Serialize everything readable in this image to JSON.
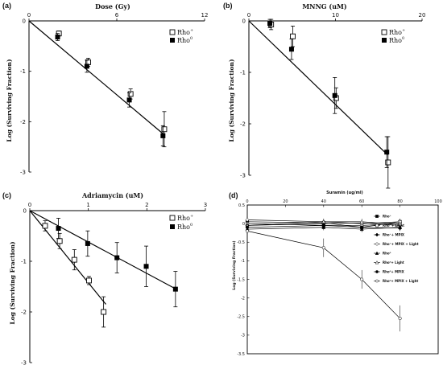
{
  "chart_data": [
    {
      "panel": "(a)",
      "type": "line",
      "title": "Dose (Gy)",
      "xlabel": "Dose (Gy)",
      "ylabel": "Log (Surviving Fraction)",
      "xlim": [
        0,
        12
      ],
      "ylim": [
        -3,
        0
      ],
      "xticks": [
        "0",
        "6",
        "12"
      ],
      "yticks": [
        "0",
        "-1",
        "-2",
        "-3"
      ],
      "legend_position": "top-right",
      "series": [
        {
          "name": "Rho+",
          "marker": "open-square",
          "x": [
            2,
            4,
            6.9,
            9.2
          ],
          "y": [
            -0.25,
            -0.82,
            -1.45,
            -2.15
          ],
          "err": [
            0.05,
            0.08,
            0.1,
            0.35
          ]
        },
        {
          "name": "Rho0",
          "marker": "filled-square",
          "x": [
            2,
            4,
            6.9,
            9.2
          ],
          "y": [
            -0.32,
            -0.9,
            -1.57,
            -2.28
          ],
          "err": [
            0.07,
            0.12,
            0.14,
            0.2
          ]
        }
      ],
      "fit_lines": [
        [
          [
            0,
            0
          ],
          [
            9.2,
            -2.25
          ]
        ]
      ]
    },
    {
      "panel": "(b)",
      "type": "line",
      "title": "MNNG (uM)",
      "xlabel": "MNNG (uM)",
      "ylabel": "Log (Surviving Fraction)",
      "xlim": [
        0,
        20
      ],
      "ylim": [
        -3,
        0
      ],
      "xticks": [
        "0",
        "10",
        "20"
      ],
      "yticks": [
        "0",
        "-1",
        "-2",
        "-3"
      ],
      "legend_position": "top-right",
      "series": [
        {
          "name": "Rho+",
          "marker": "open-square",
          "x": [
            2.5,
            5,
            10,
            16
          ],
          "y": [
            -0.07,
            -0.3,
            -1.5,
            -2.75
          ],
          "err": [
            0.1,
            0.2,
            0.2,
            0.5
          ]
        },
        {
          "name": "Rho0",
          "marker": "filled-square",
          "x": [
            2.5,
            5,
            10,
            16
          ],
          "y": [
            -0.05,
            -0.55,
            -1.45,
            -2.55
          ],
          "err": [
            0.08,
            0.2,
            0.35,
            0.3
          ]
        }
      ],
      "fit_lines": [
        [
          [
            0,
            0
          ],
          [
            16,
            -2.6
          ]
        ]
      ]
    },
    {
      "panel": "(c)",
      "type": "line",
      "title": "Adriamycin (uM)",
      "xlabel": "Adriamycin (uM)",
      "ylabel": "Log (Surviving Fraction)",
      "xlim": [
        0,
        3
      ],
      "ylim": [
        -3,
        0
      ],
      "xticks": [
        "0",
        "1",
        "2",
        "3"
      ],
      "yticks": [
        "0",
        "-1",
        "-2",
        "-3"
      ],
      "legend_position": "top-right",
      "series": [
        {
          "name": "Rho+",
          "marker": "open-square",
          "x": [
            0.25,
            0.5,
            0.75,
            1.0,
            1.25
          ],
          "y": [
            -0.3,
            -0.6,
            -0.97,
            -1.38,
            -2.0
          ],
          "err": [
            0.1,
            0.15,
            0.2,
            0.08,
            0.3
          ]
        },
        {
          "name": "Rho0",
          "marker": "filled-square",
          "x": [
            0.5,
            1.0,
            1.5,
            2.0,
            2.5
          ],
          "y": [
            -0.35,
            -0.65,
            -0.93,
            -1.1,
            -1.55
          ],
          "err": [
            0.2,
            0.25,
            0.3,
            0.4,
            0.35
          ]
        }
      ],
      "fit_lines": [
        [
          [
            0,
            0
          ],
          [
            1.3,
            -1.85
          ]
        ],
        [
          [
            0,
            0
          ],
          [
            2.5,
            -1.55
          ]
        ]
      ]
    },
    {
      "panel": "(d)",
      "type": "line",
      "title": "Suramin (ug/ml)",
      "xlabel": "Suramin (ug/ml)",
      "ylabel": "Log (Surviving Fraction)",
      "xlim": [
        0,
        100
      ],
      "ylim": [
        -3.5,
        0.5
      ],
      "xticks": [
        "0",
        "20",
        "40",
        "60",
        "80",
        "100"
      ],
      "yticks": [
        "0.5",
        "0",
        "-0.5",
        "-1",
        "-1.5",
        "-2",
        "-2.5",
        "-3",
        "-3.5"
      ],
      "legend_position": "right",
      "x": [
        0,
        40,
        60,
        80
      ],
      "series": [
        {
          "name": "Rho+",
          "values": [
            0.05,
            0.02,
            -0.1,
            0.05
          ]
        },
        {
          "name": "Rho+ + Light",
          "values": [
            0.0,
            -0.05,
            -0.05,
            0.0
          ]
        },
        {
          "name": "Rho+ + MPIX",
          "values": [
            -0.05,
            0.0,
            0.02,
            -0.05
          ]
        },
        {
          "name": "Rho+ + MPIX + Light",
          "values": [
            0.1,
            0.05,
            0.0,
            0.05
          ]
        },
        {
          "name": "Rho0",
          "values": [
            -0.15,
            -0.1,
            -0.15,
            -0.1
          ]
        },
        {
          "name": "Rho0 + Light",
          "values": [
            -0.05,
            0.05,
            0.05,
            -0.02
          ]
        },
        {
          "name": "Rho0 + MPIX",
          "values": [
            -0.1,
            -0.05,
            -0.1,
            -0.12
          ]
        },
        {
          "name": "Rho0 + MPIX + Light",
          "values": [
            -0.2,
            -0.65,
            -1.5,
            -2.55
          ]
        }
      ]
    }
  ],
  "labels": {
    "panel_a": "(a)",
    "panel_b": "(b)",
    "panel_c": "(c)",
    "panel_d": "(d)",
    "title_a": "Dose (Gy)",
    "title_b": "MNNG (uM)",
    "title_c": "Adriamycin (uM)",
    "title_d": "Suramin (ug/ml)",
    "ylabel": "Log (Surviving Fraction)",
    "ylabel_d": "Log (Surviving Fraction)"
  },
  "legend": {
    "rho_plus": "Rho",
    "rho_plus_sup": "+",
    "rho_zero": "Rho",
    "rho_zero_sup": "0"
  },
  "legend_d": [
    "Rho⁺",
    "Rho⁺+ Light",
    "Rho⁺+ MPIX",
    "Rho⁺+ MPIX + Light",
    "Rho⁰",
    "Rho⁰+ Light",
    "Rho⁰+ MPIX",
    "Rho⁰+ MPIX + Light"
  ]
}
